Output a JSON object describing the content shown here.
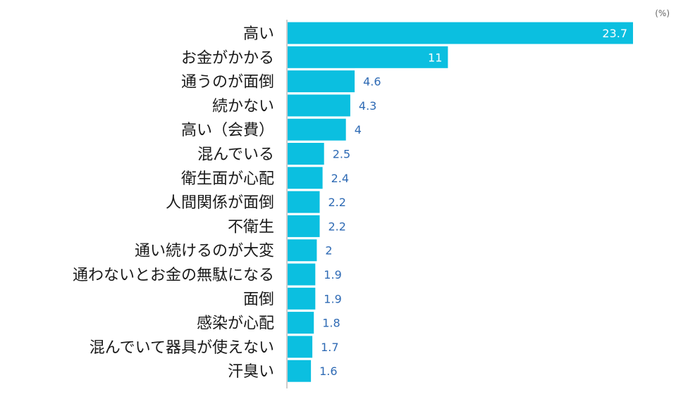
{
  "chart_data": {
    "type": "bar",
    "orientation": "horizontal",
    "unit_label": "(%)",
    "bar_color": "#0bbfe0",
    "value_label_color": "#2e6ab4",
    "value_label_inside_color": "#ffffff",
    "category_label_color": "#1a1a1a",
    "categories": [
      "高い",
      "お金がかかる",
      "通うのが面倒",
      "続かない",
      "高い（会費）",
      "混んでいる",
      "衛生面が心配",
      "人間関係が面倒",
      "不衛生",
      "通い続けるのが大変",
      "通わないとお金の無駄になる",
      "面倒",
      "感染が心配",
      "混んでいて器具が使えない",
      "汗臭い"
    ],
    "values": [
      23.7,
      11,
      4.6,
      4.3,
      4,
      2.5,
      2.4,
      2.2,
      2.2,
      2,
      1.9,
      1.9,
      1.8,
      1.7,
      1.6
    ],
    "value_labels": [
      "23.7",
      "11",
      "4.6",
      "4.3",
      "4",
      "2.5",
      "2.4",
      "2.2",
      "2.2",
      "2",
      "1.9",
      "1.9",
      "1.8",
      "1.7",
      "1.6"
    ],
    "xlim": [
      0,
      23.7
    ],
    "grid": false,
    "legend": "none"
  }
}
